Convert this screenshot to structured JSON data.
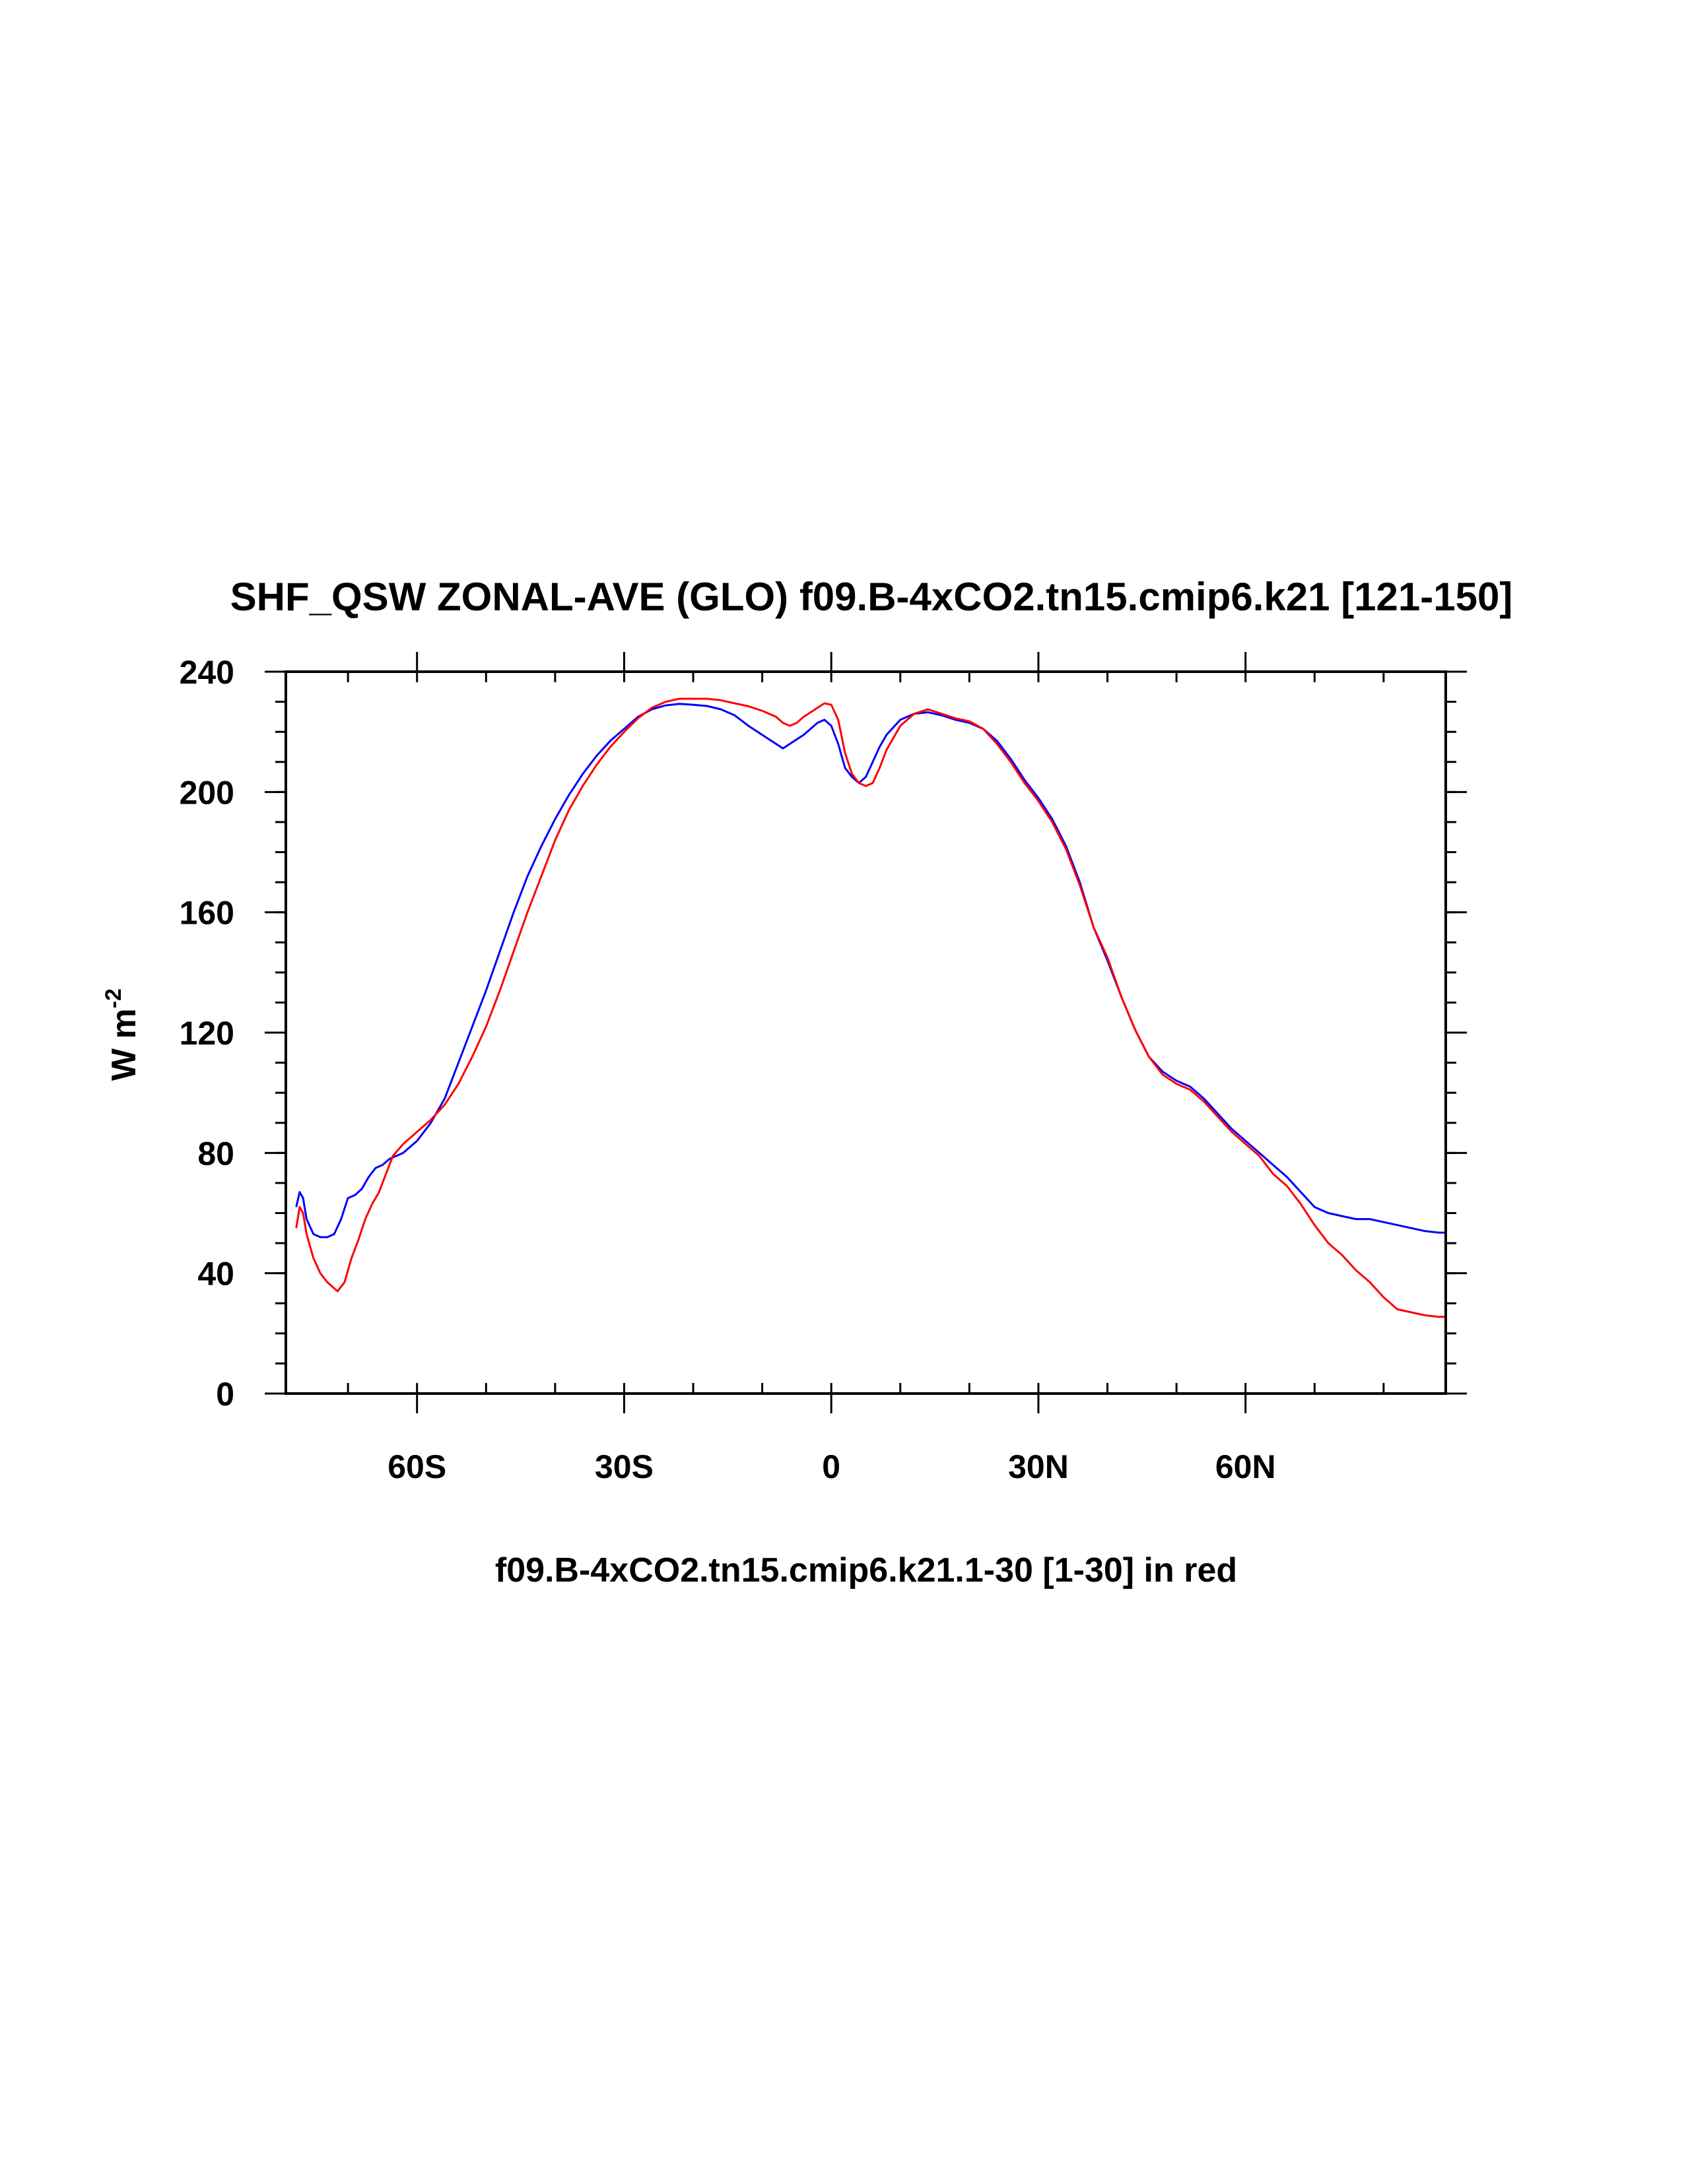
{
  "chart_data": {
    "type": "line",
    "title": "SHF_QSW ZONAL-AVE (GLO) f09.B-4xCO2.tn15.cmip6.k21 [121-150]",
    "xlabel": "f09.B-4xCO2.tn15.cmip6.k21.1-30 [1-30] in red",
    "ylabel": {
      "base": "W m",
      "superscript": "-2"
    },
    "xlim": [
      -79,
      89
    ],
    "ylim": [
      0,
      240
    ],
    "xticks": [
      {
        "value": -60,
        "label": "60S"
      },
      {
        "value": -30,
        "label": "30S"
      },
      {
        "value": 0,
        "label": "0"
      },
      {
        "value": 30,
        "label": "30N"
      },
      {
        "value": 60,
        "label": "60N"
      }
    ],
    "xminor_step": 10,
    "yticks": [
      {
        "value": 0,
        "label": "0"
      },
      {
        "value": 40,
        "label": "40"
      },
      {
        "value": 80,
        "label": "80"
      },
      {
        "value": 120,
        "label": "120"
      },
      {
        "value": 160,
        "label": "160"
      },
      {
        "value": 200,
        "label": "200"
      },
      {
        "value": 240,
        "label": "240"
      }
    ],
    "yminor_step": 10,
    "grid": false,
    "series": [
      {
        "color": "#0000ff",
        "points": [
          [
            -77.5,
            62
          ],
          [
            -77,
            67
          ],
          [
            -76.5,
            65
          ],
          [
            -76,
            58
          ],
          [
            -75,
            53
          ],
          [
            -74,
            52
          ],
          [
            -73,
            52
          ],
          [
            -72,
            53
          ],
          [
            -71,
            58
          ],
          [
            -70,
            65
          ],
          [
            -69,
            66
          ],
          [
            -68,
            68
          ],
          [
            -67,
            72
          ],
          [
            -66,
            75
          ],
          [
            -65,
            76
          ],
          [
            -64,
            78
          ],
          [
            -62,
            80
          ],
          [
            -60,
            84
          ],
          [
            -58,
            90
          ],
          [
            -56,
            98
          ],
          [
            -54,
            110
          ],
          [
            -52,
            122
          ],
          [
            -50,
            134
          ],
          [
            -48,
            147
          ],
          [
            -46,
            160
          ],
          [
            -44,
            172
          ],
          [
            -42,
            182
          ],
          [
            -40,
            191
          ],
          [
            -38,
            199
          ],
          [
            -36,
            206
          ],
          [
            -34,
            212
          ],
          [
            -32,
            217
          ],
          [
            -30,
            221
          ],
          [
            -28,
            225
          ],
          [
            -26,
            227.5
          ],
          [
            -24,
            228.8
          ],
          [
            -22,
            229.3
          ],
          [
            -20,
            229
          ],
          [
            -18,
            228.6
          ],
          [
            -16,
            227.5
          ],
          [
            -14,
            225.5
          ],
          [
            -12,
            222
          ],
          [
            -10,
            219
          ],
          [
            -8,
            216
          ],
          [
            -7,
            214.5
          ],
          [
            -6,
            216
          ],
          [
            -4,
            219
          ],
          [
            -2,
            223
          ],
          [
            -1,
            224
          ],
          [
            0,
            222
          ],
          [
            1,
            216
          ],
          [
            2,
            208
          ],
          [
            3,
            205
          ],
          [
            4,
            203
          ],
          [
            5,
            205
          ],
          [
            6,
            210
          ],
          [
            7,
            215
          ],
          [
            8,
            219
          ],
          [
            10,
            224
          ],
          [
            12,
            226
          ],
          [
            14,
            226.5
          ],
          [
            16,
            225.5
          ],
          [
            18,
            224
          ],
          [
            20,
            223
          ],
          [
            22,
            221
          ],
          [
            24,
            217
          ],
          [
            26,
            211
          ],
          [
            28,
            204
          ],
          [
            30,
            198
          ],
          [
            32,
            191
          ],
          [
            34,
            182
          ],
          [
            36,
            170
          ],
          [
            38,
            155
          ],
          [
            40,
            144
          ],
          [
            42,
            132
          ],
          [
            44,
            121
          ],
          [
            46,
            112
          ],
          [
            48,
            107
          ],
          [
            50,
            104
          ],
          [
            52,
            102
          ],
          [
            54,
            98
          ],
          [
            56,
            93
          ],
          [
            58,
            88
          ],
          [
            60,
            84
          ],
          [
            62,
            80
          ],
          [
            64,
            76
          ],
          [
            66,
            72
          ],
          [
            68,
            67
          ],
          [
            70,
            62
          ],
          [
            72,
            60
          ],
          [
            74,
            59
          ],
          [
            76,
            58
          ],
          [
            78,
            58
          ],
          [
            80,
            57
          ],
          [
            82,
            56
          ],
          [
            84,
            55
          ],
          [
            86,
            54
          ],
          [
            88,
            53.5
          ],
          [
            89,
            53.5
          ]
        ]
      },
      {
        "color": "#ff0000",
        "points": [
          [
            -77.5,
            55
          ],
          [
            -77,
            62
          ],
          [
            -76.5,
            60
          ],
          [
            -76,
            53
          ],
          [
            -75,
            45
          ],
          [
            -74,
            40
          ],
          [
            -73,
            37
          ],
          [
            -72,
            35
          ],
          [
            -71.5,
            34
          ],
          [
            -70.5,
            37
          ],
          [
            -69.5,
            45
          ],
          [
            -68.5,
            51
          ],
          [
            -67.5,
            58
          ],
          [
            -66.5,
            63
          ],
          [
            -65.5,
            67
          ],
          [
            -64.5,
            73
          ],
          [
            -63.5,
            79
          ],
          [
            -62,
            83
          ],
          [
            -60,
            87
          ],
          [
            -58,
            91
          ],
          [
            -56,
            96
          ],
          [
            -54,
            103
          ],
          [
            -52,
            112
          ],
          [
            -50,
            122
          ],
          [
            -48,
            134
          ],
          [
            -46,
            147
          ],
          [
            -44,
            160
          ],
          [
            -42,
            172
          ],
          [
            -40,
            184
          ],
          [
            -38,
            194
          ],
          [
            -36,
            202
          ],
          [
            -34,
            209
          ],
          [
            -32,
            215
          ],
          [
            -30,
            220
          ],
          [
            -28,
            224.5
          ],
          [
            -26,
            228
          ],
          [
            -24,
            230
          ],
          [
            -22,
            231
          ],
          [
            -20,
            231
          ],
          [
            -18,
            231
          ],
          [
            -16,
            230.5
          ],
          [
            -14,
            229.5
          ],
          [
            -12,
            228.5
          ],
          [
            -10,
            227
          ],
          [
            -8,
            225
          ],
          [
            -7,
            223
          ],
          [
            -6,
            222
          ],
          [
            -5,
            223
          ],
          [
            -4,
            225
          ],
          [
            -2,
            228
          ],
          [
            -1,
            229.5
          ],
          [
            0,
            229
          ],
          [
            1,
            224
          ],
          [
            2,
            213
          ],
          [
            3,
            206
          ],
          [
            4,
            203
          ],
          [
            5,
            202
          ],
          [
            6,
            203
          ],
          [
            7,
            208
          ],
          [
            8,
            214
          ],
          [
            10,
            222
          ],
          [
            12,
            226
          ],
          [
            14,
            227.5
          ],
          [
            16,
            226
          ],
          [
            18,
            224.5
          ],
          [
            20,
            223.5
          ],
          [
            22,
            221
          ],
          [
            24,
            216
          ],
          [
            26,
            210
          ],
          [
            28,
            203
          ],
          [
            30,
            197
          ],
          [
            32,
            190
          ],
          [
            34,
            181
          ],
          [
            36,
            169
          ],
          [
            38,
            155
          ],
          [
            40,
            145
          ],
          [
            42,
            132
          ],
          [
            44,
            121
          ],
          [
            46,
            112
          ],
          [
            48,
            106
          ],
          [
            50,
            103
          ],
          [
            52,
            101
          ],
          [
            54,
            97
          ],
          [
            56,
            92
          ],
          [
            58,
            87
          ],
          [
            60,
            83
          ],
          [
            62,
            79
          ],
          [
            64,
            73
          ],
          [
            66,
            69
          ],
          [
            68,
            63
          ],
          [
            70,
            56
          ],
          [
            72,
            50
          ],
          [
            74,
            46
          ],
          [
            76,
            41
          ],
          [
            78,
            37
          ],
          [
            80,
            32
          ],
          [
            82,
            28
          ],
          [
            84,
            27
          ],
          [
            86,
            26
          ],
          [
            88,
            25.5
          ],
          [
            89,
            25.5
          ]
        ]
      }
    ]
  }
}
